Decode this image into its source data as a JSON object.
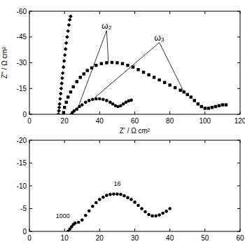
{
  "chart_data": [
    {
      "type": "scatter",
      "x_label": "Z' / Ω cm²",
      "y_label": "Z'' / Ω cm²",
      "xlim": [
        0,
        120
      ],
      "xticks": [
        0,
        20,
        40,
        60,
        80,
        100,
        120
      ],
      "ylim": [
        0,
        -60
      ],
      "yticks": [
        0,
        -15,
        -30,
        -45,
        -60
      ],
      "series": [
        {
          "color": "#000000",
          "marker": "diamond",
          "x": [
            16.5,
            16.8,
            17,
            17.2,
            17.5,
            17.8,
            18.1,
            18.4,
            18.7,
            19,
            19.4,
            19.8,
            20.2,
            20.6,
            21,
            21.5,
            22,
            22.5,
            23,
            23.5
          ],
          "values": [
            0,
            -2,
            -4,
            -6,
            -9,
            -12,
            -15,
            -18,
            -21,
            -24,
            -27.5,
            -31,
            -34.5,
            -38,
            -41.5,
            -45,
            -48.5,
            -52,
            -55,
            -57
          ]
        },
        {
          "color": "#000000",
          "marker": "square",
          "x": [
            19.5,
            20,
            21,
            22,
            23.5,
            25,
            27,
            29,
            31,
            33,
            35.5,
            38,
            41,
            44,
            47,
            50,
            53,
            56,
            59,
            62,
            65,
            68,
            71,
            74,
            77,
            80,
            83,
            86,
            88,
            90,
            92,
            94,
            96,
            98,
            100,
            102,
            104,
            106,
            108,
            110,
            112
          ],
          "values": [
            -1,
            -4,
            -7,
            -10,
            -13,
            -16,
            -19,
            -21.5,
            -23.5,
            -25.5,
            -27,
            -28.5,
            -29.5,
            -30,
            -30.2,
            -30,
            -29.5,
            -28.5,
            -27.5,
            -26,
            -24.5,
            -23,
            -21.5,
            -20,
            -18.5,
            -17,
            -15.5,
            -14,
            -13,
            -11.5,
            -10,
            -8,
            -6,
            -4.5,
            -3.5,
            -3.5,
            -4,
            -4.5,
            -5,
            -5.5,
            -5.5
          ]
        },
        {
          "color": "#000000",
          "marker": "circle",
          "x": [
            24,
            24.5,
            25.5,
            27,
            28.5,
            30,
            32,
            34,
            36,
            38,
            40,
            42,
            44,
            46,
            47.5,
            49,
            50.5,
            52,
            53.5,
            55,
            56.5,
            58
          ],
          "values": [
            0,
            -1,
            -2,
            -3,
            -4.5,
            -5.5,
            -7,
            -8,
            -8.7,
            -9,
            -9,
            -8.7,
            -8,
            -7,
            -6,
            -5,
            -4.5,
            -5,
            -6,
            -7,
            -7.8,
            -8.2
          ]
        }
      ],
      "annotations": [
        {
          "text": "ω₂",
          "x": 44,
          "y": -50,
          "targets": [
            [
              27,
              -2
            ],
            [
              45,
              -30
            ]
          ]
        },
        {
          "text": "ω₃",
          "x": 74,
          "y": -43,
          "targets": [
            [
              37,
              -9.5
            ],
            [
              88,
              -13
            ]
          ]
        }
      ]
    },
    {
      "type": "scatter",
      "xlim": [
        0,
        60
      ],
      "xticks": [
        0,
        10,
        20,
        30,
        40,
        50,
        60
      ],
      "ylim": [
        0,
        -20
      ],
      "yticks": [
        0,
        -5,
        -10,
        -15,
        -20
      ],
      "series": [
        {
          "color": "#000000",
          "marker": "circle",
          "x": [
            11,
            11.5,
            12,
            12.5,
            13,
            14,
            15,
            16,
            17,
            18,
            19,
            20,
            21,
            22,
            23,
            24,
            25,
            26,
            27,
            28,
            29,
            30,
            31,
            32,
            33,
            34,
            35,
            36,
            37,
            38,
            39,
            40
          ],
          "values": [
            0,
            -0.5,
            -1,
            -1.5,
            -1.8,
            -2,
            -2.5,
            -3.5,
            -4.5,
            -5.5,
            -6.3,
            -7,
            -7.5,
            -7.9,
            -8.1,
            -8.2,
            -8.2,
            -8.1,
            -7.8,
            -7.4,
            -7,
            -6.4,
            -5.7,
            -5,
            -4.3,
            -3.7,
            -3.4,
            -3.4,
            -3.6,
            -4,
            -4.4,
            -5
          ]
        }
      ],
      "annotations": [
        {
          "text": "1000",
          "x": 9.5,
          "y": -3
        },
        {
          "text": "16",
          "x": 25,
          "y": -10
        }
      ]
    }
  ]
}
